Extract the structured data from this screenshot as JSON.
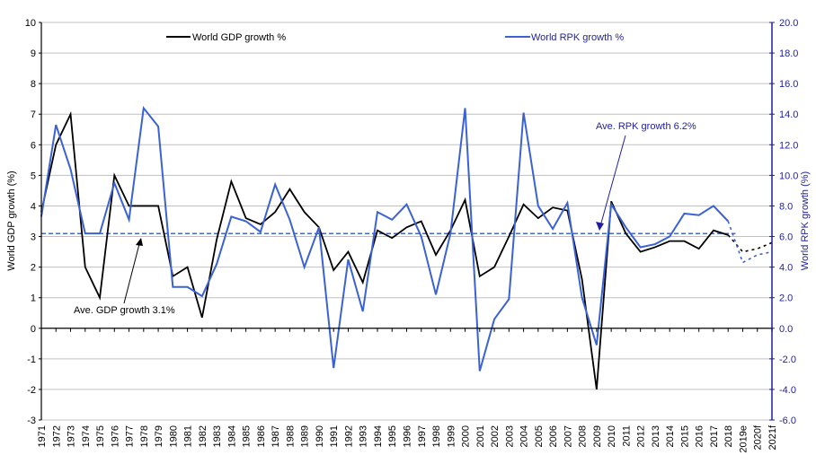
{
  "chart_data": {
    "type": "line",
    "title": "",
    "xlabel": "",
    "ylabel": "World GDP growth (%)",
    "y2label": "World RPK growth (%)",
    "ylim": [
      -3,
      10
    ],
    "y2lim": [
      -6.0,
      20.0
    ],
    "yticks": [
      "10",
      "9",
      "8",
      "7",
      "6",
      "5",
      "4",
      "3",
      "2",
      "1",
      "0",
      "-1",
      "-2",
      "-3"
    ],
    "y2ticks": [
      "20.0",
      "18.0",
      "16.0",
      "14.0",
      "12.0",
      "10.0",
      "8.0",
      "6.0",
      "4.0",
      "2.0",
      "0.0",
      "-2.0",
      "-4.0",
      "-6.0"
    ],
    "grid": true,
    "legend_position": "top",
    "categories": [
      "1971",
      "1972",
      "1973",
      "1974",
      "1975",
      "1976",
      "1977",
      "1978",
      "1979",
      "1980",
      "1981",
      "1982",
      "1983",
      "1984",
      "1985",
      "1986",
      "1987",
      "1988",
      "1989",
      "1990",
      "1991",
      "1992",
      "1993",
      "1994",
      "1995",
      "1996",
      "1997",
      "1998",
      "1999",
      "2000",
      "2001",
      "2002",
      "2003",
      "2004",
      "2005",
      "2006",
      "2007",
      "2008",
      "2009",
      "2010",
      "2011",
      "2012",
      "2013",
      "2014",
      "2015",
      "2016",
      "2017",
      "2018",
      "2019e",
      "2020f",
      "2021f"
    ],
    "forecast_start_index": 48,
    "series": [
      {
        "name": "World GDP growth %",
        "axis": "left",
        "color": "#000000",
        "values": [
          3.8,
          6.0,
          7.0,
          2.0,
          1.0,
          5.0,
          4.0,
          4.0,
          4.0,
          1.7,
          2.0,
          0.35,
          2.9,
          4.8,
          3.6,
          3.4,
          3.8,
          4.55,
          3.8,
          3.3,
          1.9,
          2.5,
          1.5,
          3.2,
          2.95,
          3.3,
          3.5,
          2.4,
          3.2,
          4.2,
          1.7,
          2.0,
          3.0,
          4.05,
          3.6,
          3.95,
          3.85,
          1.6,
          -2.0,
          4.15,
          3.1,
          2.5,
          2.65,
          2.85,
          2.85,
          2.6,
          3.2,
          3.05,
          2.5,
          2.6,
          2.8
        ]
      },
      {
        "name": "World RPK growth %",
        "axis": "right",
        "color": "#3a62d4",
        "values": [
          7.3,
          13.3,
          10.4,
          6.2,
          6.2,
          9.5,
          7.1,
          14.4,
          13.2,
          2.7,
          2.7,
          2.1,
          4.2,
          7.3,
          7.0,
          6.3,
          9.4,
          7.1,
          4.0,
          6.6,
          -2.6,
          4.5,
          1.1,
          7.6,
          7.1,
          8.1,
          6.0,
          2.2,
          6.2,
          14.4,
          -2.8,
          0.6,
          1.9,
          14.1,
          8.0,
          6.5,
          8.2,
          2.0,
          -1.1,
          8.1,
          6.6,
          5.3,
          5.5,
          6.0,
          7.5,
          7.4,
          8.0,
          7.0,
          4.3,
          4.8,
          5.0
        ]
      }
    ],
    "reference_lines": [
      {
        "name": "Ave. GDP growth",
        "axis": "left",
        "value": 3.1,
        "color": "#000000",
        "style": "dashed"
      },
      {
        "name": "Ave. RPK growth",
        "axis": "right",
        "value": 6.2,
        "color": "#3a62d4",
        "style": "dashed"
      }
    ],
    "annotations": [
      {
        "text": "Ave. GDP growth 3.1%",
        "color": "#000000",
        "points_to": "Ave. GDP growth",
        "target_category": "1978"
      },
      {
        "text": "Ave. RPK growth 6.2%",
        "color": "#1f1f9e",
        "points_to": "Ave. RPK growth",
        "target_category": "2009"
      }
    ],
    "legend": [
      {
        "label": "World GDP growth %",
        "color": "#000000"
      },
      {
        "label": "World RPK growth %",
        "color": "#3a62d4"
      }
    ]
  },
  "colors": {
    "gdp": "#000000",
    "rpk": "#3a62d4",
    "right_axis": "#1f1f9e",
    "grid": "#c0c0c0"
  }
}
